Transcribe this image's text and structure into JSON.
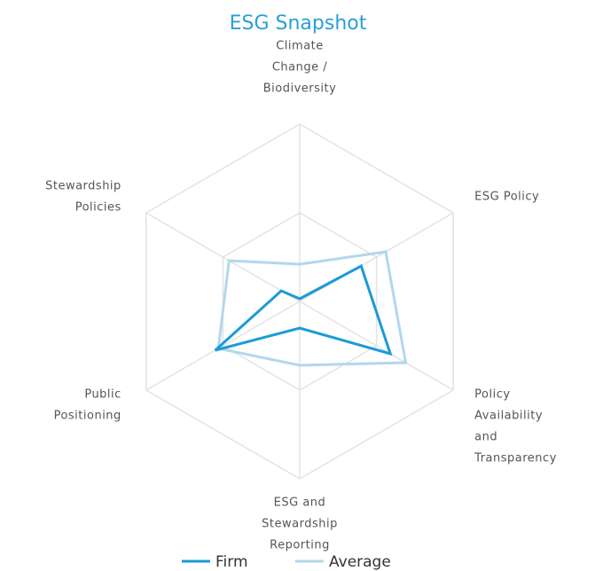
{
  "chart_data": {
    "type": "radar",
    "title": "ESG Snapshot",
    "categories": [
      [
        "Climate",
        "Change /",
        "Biodiversity"
      ],
      [
        "ESG Policy"
      ],
      [
        "Policy",
        "Availability",
        "and",
        "Transparency"
      ],
      [
        "ESG and",
        "Stewardship",
        "Reporting"
      ],
      [
        "Public",
        "Positioning"
      ],
      [
        "Stewardship",
        "Policies"
      ]
    ],
    "series": [
      {
        "name": "Firm",
        "color": "#1a9bd7",
        "values": [
          0.15,
          4.0,
          5.9,
          1.5,
          5.5,
          1.2
        ]
      },
      {
        "name": "Average",
        "color": "#b3d7ec",
        "values": [
          2.1,
          5.6,
          6.9,
          3.6,
          5.3,
          4.6
        ]
      }
    ],
    "rlim": [
      0,
      10
    ],
    "rticks": [
      5,
      10
    ],
    "grid": true,
    "legend": "bottom"
  }
}
